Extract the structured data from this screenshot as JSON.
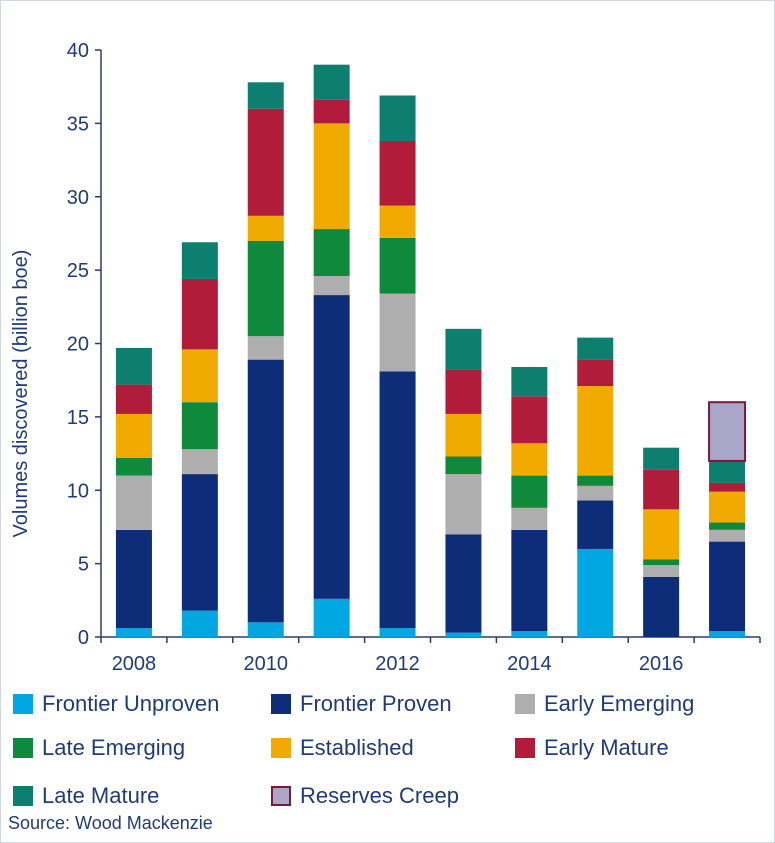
{
  "chart_data": {
    "type": "bar",
    "stacked": true,
    "ylabel": "Volumes discovered (billion boe)",
    "ylim": [
      0,
      40
    ],
    "yticks": [
      0,
      5,
      10,
      15,
      20,
      25,
      30,
      35,
      40
    ],
    "xtick_labels": [
      "2008",
      "2010",
      "2012",
      "2014",
      "2016"
    ],
    "categories": [
      "2008",
      "2009",
      "2010",
      "2011",
      "2012",
      "2013",
      "2014",
      "2015",
      "2016",
      "2017"
    ],
    "series": [
      {
        "name": "Frontier Unproven",
        "color": "#00a7e1",
        "values": [
          0.6,
          1.8,
          1.0,
          2.6,
          0.6,
          0.3,
          0.4,
          6.0,
          0.0,
          0.4
        ]
      },
      {
        "name": "Frontier Proven",
        "color": "#0d2d78",
        "values": [
          6.7,
          9.3,
          17.9,
          20.7,
          17.5,
          6.7,
          6.9,
          3.3,
          4.1,
          6.1
        ]
      },
      {
        "name": "Early Emerging",
        "color": "#aeaeae",
        "values": [
          3.7,
          1.7,
          1.6,
          1.3,
          5.3,
          4.1,
          1.5,
          1.0,
          0.8,
          0.8
        ]
      },
      {
        "name": "Late Emerging",
        "color": "#0f8a3c",
        "values": [
          1.2,
          3.2,
          6.5,
          3.2,
          3.8,
          1.2,
          2.2,
          0.7,
          0.4,
          0.5
        ]
      },
      {
        "name": "Established",
        "color": "#f0aa00",
        "values": [
          3.0,
          3.6,
          1.7,
          7.2,
          2.2,
          2.9,
          2.2,
          6.1,
          3.4,
          2.1
        ]
      },
      {
        "name": "Early Mature",
        "color": "#b01c3a",
        "values": [
          2.0,
          4.8,
          7.3,
          1.6,
          4.4,
          3.0,
          3.2,
          1.8,
          2.7,
          0.6
        ]
      },
      {
        "name": "Late Mature",
        "color": "#0d7f6e",
        "values": [
          2.5,
          2.5,
          1.8,
          2.4,
          3.1,
          2.8,
          2.0,
          1.5,
          1.5,
          1.5
        ]
      },
      {
        "name": "Reserves Creep",
        "color": "#a9a6c8",
        "border": "#7a1a3c",
        "values": [
          0,
          0,
          0,
          0,
          0,
          0,
          0,
          0,
          0,
          4.0
        ]
      }
    ],
    "grid": false,
    "legend_position": "bottom"
  },
  "source_text": "Source: Wood Mackenzie"
}
